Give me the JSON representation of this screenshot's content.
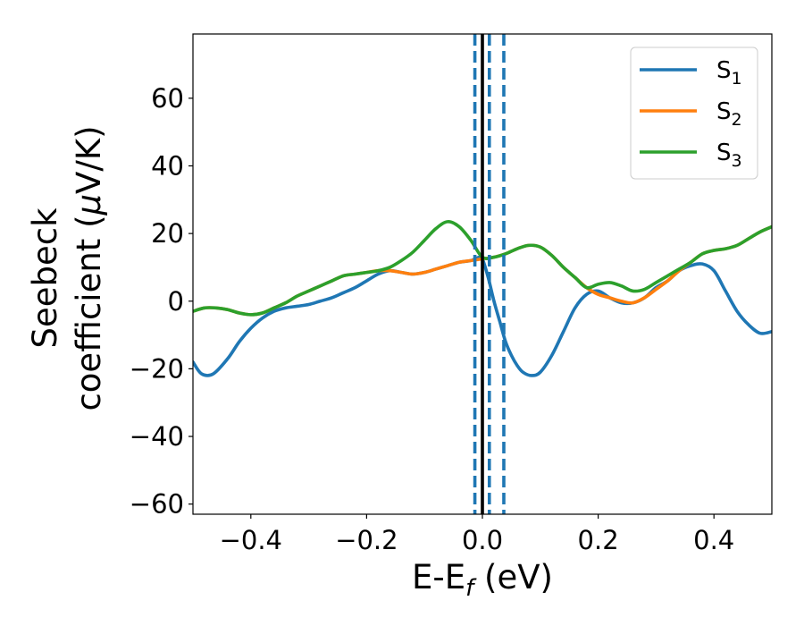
{
  "chart_data": {
    "type": "line",
    "xlabel": {
      "main": "E-E",
      "sub": "f",
      "unit": " (eV)"
    },
    "ylabel": {
      "line1": "Seebeck",
      "line2": "coefficient  (",
      "mu": "μ",
      "unit": "V/K)"
    },
    "xlim": [
      -0.5,
      0.5
    ],
    "ylim": [
      -63,
      79
    ],
    "xticks": [
      -0.4,
      -0.2,
      0.0,
      0.2,
      0.4
    ],
    "xtick_labels": [
      "−0.4",
      "−0.2",
      "0.0",
      "0.2",
      "0.4"
    ],
    "yticks": [
      -60,
      -40,
      -20,
      0,
      20,
      40,
      60
    ],
    "ytick_labels": [
      "−60",
      "−40",
      "−20",
      "0",
      "20",
      "40",
      "60"
    ],
    "grid": false,
    "legend_position": "top-right",
    "series": [
      {
        "name": "S",
        "sub": "1",
        "color": "#1f77b4",
        "points": [
          [
            -0.5,
            -18
          ],
          [
            -0.485,
            -21.5
          ],
          [
            -0.465,
            -21.5
          ],
          [
            -0.44,
            -17
          ],
          [
            -0.42,
            -12
          ],
          [
            -0.4,
            -8
          ],
          [
            -0.38,
            -5
          ],
          [
            -0.36,
            -3
          ],
          [
            -0.34,
            -2
          ],
          [
            -0.32,
            -1.5
          ],
          [
            -0.3,
            -1
          ],
          [
            -0.28,
            0
          ],
          [
            -0.26,
            1
          ],
          [
            -0.24,
            2.5
          ],
          [
            -0.22,
            4
          ],
          [
            -0.2,
            6
          ],
          [
            -0.18,
            8
          ],
          [
            -0.16,
            9
          ],
          [
            -0.14,
            8.5
          ],
          [
            -0.12,
            8
          ],
          [
            -0.1,
            8.5
          ],
          [
            -0.08,
            9.5
          ],
          [
            -0.06,
            10.5
          ],
          [
            -0.04,
            11.5
          ],
          [
            -0.02,
            12
          ],
          [
            -0.005,
            13
          ],
          [
            0.0,
            12.5
          ],
          [
            0.01,
            7
          ],
          [
            0.02,
            0
          ],
          [
            0.03,
            -6
          ],
          [
            0.04,
            -12
          ],
          [
            0.05,
            -16
          ],
          [
            0.06,
            -19
          ],
          [
            0.07,
            -21
          ],
          [
            0.085,
            -22
          ],
          [
            0.1,
            -21
          ],
          [
            0.12,
            -16
          ],
          [
            0.14,
            -9
          ],
          [
            0.16,
            -2
          ],
          [
            0.18,
            2
          ],
          [
            0.2,
            3
          ],
          [
            0.22,
            1
          ],
          [
            0.24,
            -0.5
          ],
          [
            0.26,
            -0.5
          ],
          [
            0.28,
            1
          ],
          [
            0.3,
            4
          ],
          [
            0.32,
            6
          ],
          [
            0.34,
            9
          ],
          [
            0.36,
            10.5
          ],
          [
            0.38,
            11
          ],
          [
            0.4,
            9
          ],
          [
            0.42,
            3
          ],
          [
            0.44,
            -3
          ],
          [
            0.46,
            -7
          ],
          [
            0.48,
            -9.5
          ],
          [
            0.5,
            -9
          ]
        ]
      },
      {
        "name": "S",
        "sub": "2",
        "color": "#ff7f0e",
        "points": [
          [
            -0.5,
            -3
          ],
          [
            -0.48,
            -2
          ],
          [
            -0.46,
            -2
          ],
          [
            -0.44,
            -2.5
          ],
          [
            -0.42,
            -3.5
          ],
          [
            -0.4,
            -4
          ],
          [
            -0.38,
            -3.5
          ],
          [
            -0.36,
            -2
          ],
          [
            -0.34,
            -0.5
          ],
          [
            -0.32,
            1.5
          ],
          [
            -0.3,
            3
          ],
          [
            -0.28,
            4.5
          ],
          [
            -0.26,
            6
          ],
          [
            -0.24,
            7.5
          ],
          [
            -0.22,
            8
          ],
          [
            -0.2,
            8.5
          ],
          [
            -0.18,
            9
          ],
          [
            -0.16,
            9
          ],
          [
            -0.14,
            8.5
          ],
          [
            -0.12,
            8
          ],
          [
            -0.1,
            8.5
          ],
          [
            -0.08,
            9.5
          ],
          [
            -0.06,
            10.5
          ],
          [
            -0.04,
            11.5
          ],
          [
            -0.02,
            12
          ],
          [
            0.0,
            12.5
          ],
          [
            0.02,
            13
          ],
          [
            0.04,
            14
          ],
          [
            0.06,
            15.5
          ],
          [
            0.08,
            16.5
          ],
          [
            0.1,
            16
          ],
          [
            0.12,
            13.5
          ],
          [
            0.14,
            10
          ],
          [
            0.16,
            7
          ],
          [
            0.18,
            4
          ],
          [
            0.2,
            2
          ],
          [
            0.22,
            1
          ],
          [
            0.24,
            0
          ],
          [
            0.26,
            -0.5
          ],
          [
            0.28,
            1
          ],
          [
            0.3,
            3.5
          ],
          [
            0.32,
            6
          ],
          [
            0.34,
            9
          ],
          [
            0.36,
            11.5
          ],
          [
            0.38,
            14
          ],
          [
            0.4,
            15
          ],
          [
            0.42,
            15.5
          ],
          [
            0.44,
            16.5
          ],
          [
            0.46,
            18.5
          ],
          [
            0.48,
            20.5
          ],
          [
            0.5,
            22
          ]
        ]
      },
      {
        "name": "S",
        "sub": "3",
        "color": "#2ca02c",
        "points": [
          [
            -0.5,
            -3
          ],
          [
            -0.48,
            -2
          ],
          [
            -0.46,
            -2
          ],
          [
            -0.44,
            -2.5
          ],
          [
            -0.42,
            -3.5
          ],
          [
            -0.4,
            -4
          ],
          [
            -0.38,
            -3.5
          ],
          [
            -0.36,
            -2
          ],
          [
            -0.34,
            -0.5
          ],
          [
            -0.32,
            1.5
          ],
          [
            -0.3,
            3
          ],
          [
            -0.28,
            4.5
          ],
          [
            -0.26,
            6
          ],
          [
            -0.24,
            7.5
          ],
          [
            -0.22,
            8
          ],
          [
            -0.2,
            8.5
          ],
          [
            -0.18,
            9
          ],
          [
            -0.16,
            10
          ],
          [
            -0.14,
            12
          ],
          [
            -0.12,
            14.5
          ],
          [
            -0.1,
            18
          ],
          [
            -0.08,
            21.5
          ],
          [
            -0.06,
            23.5
          ],
          [
            -0.04,
            22
          ],
          [
            -0.02,
            18
          ],
          [
            0.0,
            13
          ],
          [
            0.02,
            13
          ],
          [
            0.04,
            14
          ],
          [
            0.06,
            15.5
          ],
          [
            0.08,
            16.5
          ],
          [
            0.1,
            16
          ],
          [
            0.12,
            13.5
          ],
          [
            0.14,
            10
          ],
          [
            0.16,
            7
          ],
          [
            0.18,
            4
          ],
          [
            0.2,
            5
          ],
          [
            0.22,
            5.5
          ],
          [
            0.24,
            4.5
          ],
          [
            0.26,
            3
          ],
          [
            0.28,
            3.5
          ],
          [
            0.3,
            5.5
          ],
          [
            0.32,
            7.5
          ],
          [
            0.34,
            9.5
          ],
          [
            0.36,
            11.5
          ],
          [
            0.38,
            14
          ],
          [
            0.4,
            15
          ],
          [
            0.42,
            15.5
          ],
          [
            0.44,
            16.5
          ],
          [
            0.46,
            18.5
          ],
          [
            0.48,
            20.5
          ],
          [
            0.5,
            22
          ]
        ]
      }
    ],
    "vlines": [
      {
        "x": 0.0,
        "style": "solid",
        "color": "#000000"
      },
      {
        "x": -0.013,
        "style": "dashed",
        "color": "#1f77b4"
      },
      {
        "x": 0.012,
        "style": "dashed",
        "color": "#1f77b4"
      },
      {
        "x": 0.037,
        "style": "dashed",
        "color": "#1f77b4"
      }
    ]
  }
}
